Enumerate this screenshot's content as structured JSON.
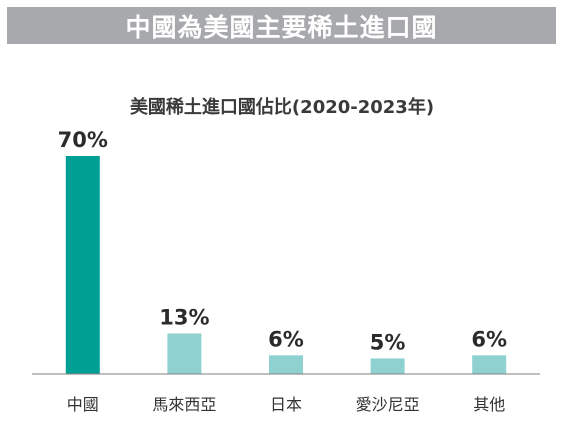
{
  "banner": {
    "title": "中國為美國主要稀土進口國"
  },
  "chart_data": {
    "type": "bar",
    "title": "美國稀土進口國佔比(2020-2023年)",
    "xlabel": "",
    "ylabel": "",
    "categories": [
      "中國",
      "馬來西亞",
      "日本",
      "愛沙尼亞",
      "其他"
    ],
    "values": [
      70,
      13,
      6,
      5,
      6
    ],
    "value_labels": [
      "70%",
      "13%",
      "6%",
      "5%",
      "6%"
    ],
    "ylim": [
      0,
      70
    ],
    "grid": false,
    "legend": "none",
    "colors": {
      "highlight": "#009f94",
      "default": "#8fd1d1",
      "baseline": "#7f7f7f"
    }
  }
}
